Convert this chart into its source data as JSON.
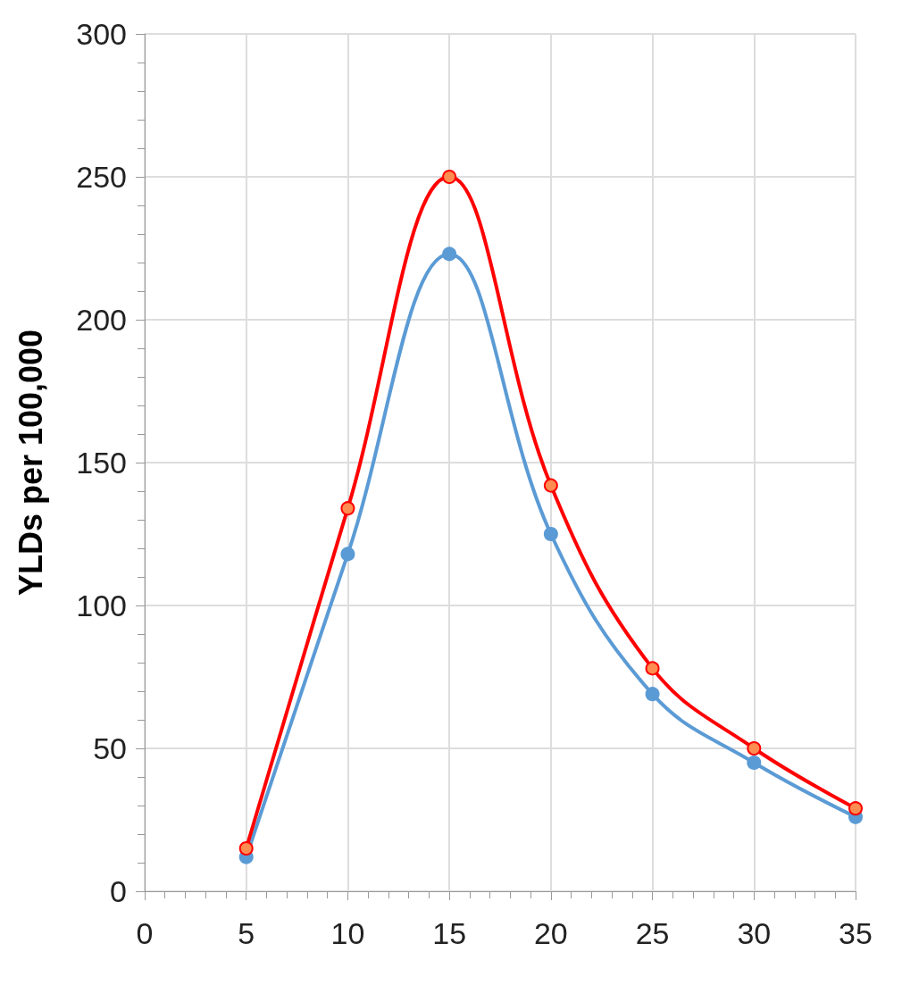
{
  "chart_data": {
    "type": "line",
    "ylabel": "YLDs per 100,000",
    "x": [
      5,
      10,
      15,
      20,
      25,
      30,
      35
    ],
    "series": [
      {
        "color": "#5b9bd5",
        "values": [
          12,
          118,
          223,
          125,
          69,
          45,
          26
        ]
      },
      {
        "color": "#ff0000",
        "values": [
          15,
          134,
          250,
          142,
          78,
          50,
          29
        ]
      }
    ],
    "xlim": [
      0,
      35
    ],
    "xticks": [
      0,
      5,
      10,
      15,
      20,
      25,
      30,
      35
    ],
    "ylim": [
      0,
      300
    ],
    "yticks": [
      0,
      50,
      100,
      150,
      200,
      250,
      300
    ],
    "grid": true,
    "marker": "circle",
    "line_style": "solid"
  }
}
